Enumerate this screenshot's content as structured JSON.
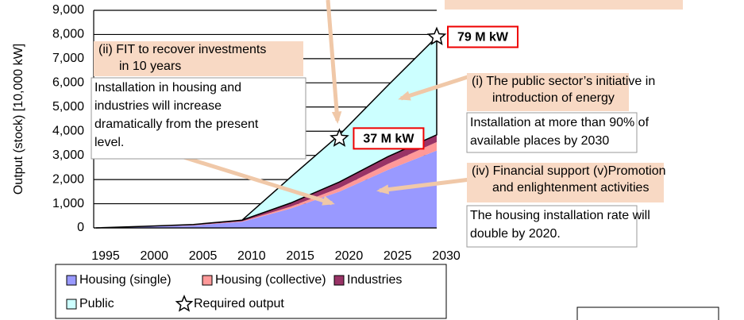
{
  "chart_data": {
    "type": "stacked_area",
    "ylabel": "Output (stock) [10,000 kW]",
    "x": [
      1995,
      2000,
      2005,
      2010,
      2015,
      2020,
      2025,
      2030
    ],
    "xlim": [
      1995,
      2030
    ],
    "xticks": [
      1995,
      2000,
      2005,
      2010,
      2015,
      2020,
      2025,
      2030
    ],
    "ylim": [
      0,
      9000
    ],
    "yticks": [
      0,
      {
        "value": 1000,
        "label": "1,000"
      },
      {
        "value": 2000,
        "label": "2,000"
      },
      {
        "value": 3000,
        "label": "3,000"
      },
      {
        "value": 4000,
        "label": "4,000"
      },
      {
        "value": 5000,
        "label": "5,000"
      },
      {
        "value": 6000,
        "label": "6,000"
      },
      {
        "value": 7000,
        "label": "7,000"
      },
      {
        "value": 8000,
        "label": "8,000"
      },
      {
        "value": 9000,
        "label": "9,000"
      }
    ],
    "grid": true,
    "series": [
      {
        "name": "Housing (single)",
        "color": "#9999ff",
        "values": [
          0,
          50,
          100,
          250,
          800,
          1500,
          2400,
          3200
        ]
      },
      {
        "name": "Housing (collective)",
        "color": "#ff9999",
        "values": [
          0,
          5,
          10,
          20,
          80,
          150,
          250,
          350
        ]
      },
      {
        "name": "Industries",
        "color": "#993366",
        "values": [
          0,
          10,
          30,
          50,
          150,
          250,
          300,
          300
        ]
      },
      {
        "name": "Public",
        "color": "#ccffff",
        "values": [
          0,
          0,
          0,
          0,
          1070,
          1950,
          2950,
          4050
        ]
      }
    ],
    "required": {
      "name": "Required output",
      "x": [
        2020,
        2030
      ],
      "values": [
        3700,
        7900
      ],
      "value_labels": [
        "37 M kW",
        "79 M kW"
      ]
    },
    "annotations": [
      {
        "heading": [
          "(ii)  FIT to recover investments",
          "in 10 years"
        ],
        "body": [
          "Installation in housing and",
          "industries will increase",
          "dramatically from the present",
          "level."
        ]
      },
      {
        "heading": [
          "(i)  The public sector’s initiative in",
          "introduction of energy"
        ],
        "body": [
          "Installation at more than 90% of",
          "available places by 2030"
        ]
      },
      {
        "heading": [
          "(iv)  Financial support   (v)Promotion",
          "and enlightenment activities"
        ],
        "body": [
          "The housing installation rate will",
          "double by 2020."
        ]
      }
    ]
  }
}
